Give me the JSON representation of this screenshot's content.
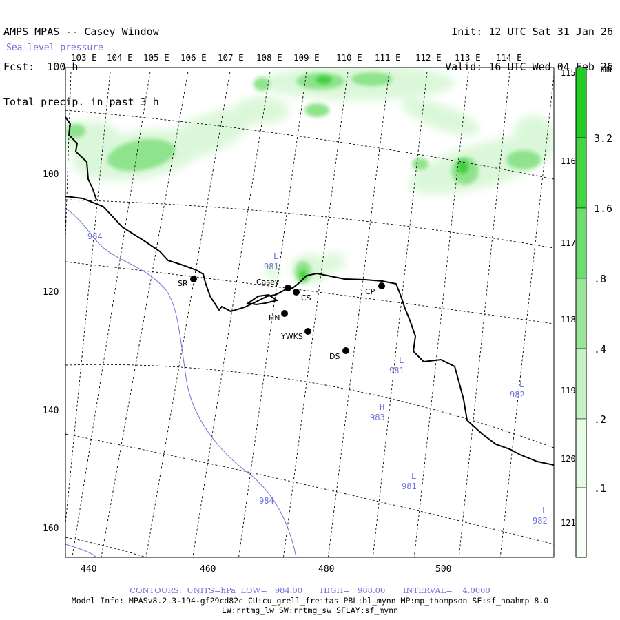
{
  "header": {
    "title": "AMPS MPAS -- Casey Window",
    "forecast": "Fcst:  100 h",
    "field": "Total precip. in past 3 h",
    "overlay": "Sea-level pressure",
    "init": "Init: 12 UTC Sat 31 Jan 26",
    "valid": "Valid: 16 UTC Wed 04 Feb 26"
  },
  "map": {
    "top_lon_labels": [
      "103 E",
      "104 E",
      "105 E",
      "106 E",
      "107 E",
      "108 E",
      "109 E",
      "110 E",
      "111 E",
      "112 E",
      "113 E",
      "114 E"
    ],
    "right_lat_labels": [
      "115 E",
      "116 E",
      "117 E",
      "118 E",
      "119 E",
      "120 E",
      "121 E"
    ],
    "y_axis_labels": [
      "100",
      "120",
      "140",
      "160"
    ],
    "x_axis_labels": [
      "440",
      "460",
      "480",
      "500"
    ],
    "stations": [
      {
        "id": "SR",
        "label": "SR"
      },
      {
        "id": "Casey",
        "label": "Casey"
      },
      {
        "id": "CS",
        "label": "CS"
      },
      {
        "id": "HN",
        "label": "HN"
      },
      {
        "id": "YWKS",
        "label": "YWKS"
      },
      {
        "id": "DS",
        "label": "DS"
      },
      {
        "id": "CP",
        "label": "CP"
      }
    ],
    "pressure_labels": [
      {
        "text": "984"
      },
      {
        "text": "984"
      },
      {
        "text": "L 981"
      },
      {
        "text": "H 983"
      },
      {
        "text": "L 981"
      },
      {
        "text": "L 982"
      },
      {
        "text": "L 982"
      },
      {
        "text": "L 981"
      }
    ],
    "colors": {
      "precip_light": "#d8f7d6",
      "precip_mid": "#8fe38c",
      "precip_dark": "#3fcf3a",
      "coast": "#000000",
      "isobar": "#6f72d8",
      "grid": "#000000"
    }
  },
  "colorbar": {
    "unit": "mm",
    "labels": [
      "3.2",
      "1.6",
      ".8",
      ".4",
      ".2",
      ".1"
    ],
    "colors": [
      "#22cc22",
      "#44d444",
      "#6edc6e",
      "#99e699",
      "#c4f2c4",
      "#e6fae6",
      "#f7fff7"
    ]
  },
  "footer": {
    "contours": "CONTOURS:  UNITS=hPa  LOW=   984.00       HIGH=   988.00       INTERVAL=    4.0000",
    "model_info": "Model Info: MPASv8.2.3-194-gf29cd82c CU:cu_grell_freitas PBL:bl_mynn MP:mp_thompson SF:sf_noahmp 8.0",
    "physics": "LW:rrtmg_lw SW:rrtmg_sw SFLAY:sf_mynn"
  }
}
